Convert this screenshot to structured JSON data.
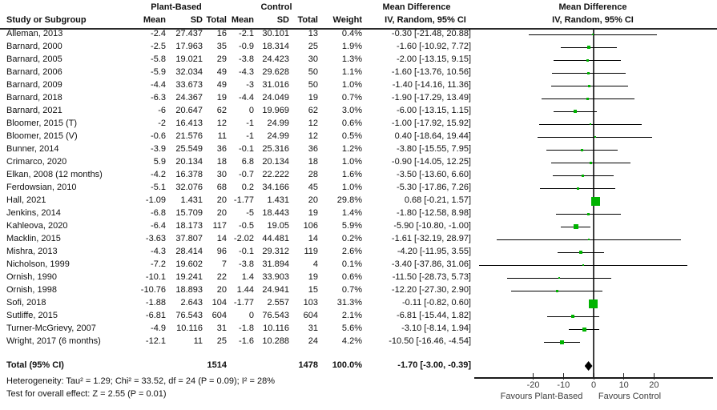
{
  "header": {
    "col_study": "Study or Subgroup",
    "group1": "Plant-Based",
    "group2": "Control",
    "col_mean1": "Mean",
    "col_sd1": "SD",
    "col_total1": "Total",
    "col_mean2": "Mean",
    "col_sd2": "SD",
    "col_total2": "Total",
    "col_weight": "Weight",
    "md_title": "Mean Difference",
    "md_subtitle": "IV, Random, 95% CI",
    "plot_title": "Mean Difference",
    "plot_subtitle": "IV, Random, 95% CI"
  },
  "chart_data": {
    "type": "forest",
    "effect_measure": "Mean Difference, IV, Random, 95% CI",
    "x_axis": {
      "ticks": [
        -20,
        -10,
        0,
        10,
        20
      ],
      "tick_labels": [
        "-20",
        "-10",
        "0",
        "10",
        "20"
      ],
      "range": [
        -39.5,
        39.5
      ],
      "favours_left": "Favours Plant-Based",
      "favours_right": "Favours Control"
    },
    "studies": [
      {
        "name": "Alleman, 2013",
        "mean1": "-2.4",
        "sd1": "27.437",
        "total1": "16",
        "mean2": "-2.1",
        "sd2": "30.101",
        "total2": "13",
        "weight": "0.4%",
        "w": 0.4,
        "md_label": "-0.30 [-21.48, 20.88]",
        "est": -0.3,
        "lo": -21.48,
        "hi": 20.88
      },
      {
        "name": "Barnard, 2000",
        "mean1": "-2.5",
        "sd1": "17.963",
        "total1": "35",
        "mean2": "-0.9",
        "sd2": "18.314",
        "total2": "25",
        "weight": "1.9%",
        "w": 1.9,
        "md_label": "-1.60 [-10.92, 7.72]",
        "est": -1.6,
        "lo": -10.92,
        "hi": 7.72
      },
      {
        "name": "Barnard, 2005",
        "mean1": "-5.8",
        "sd1": "19.021",
        "total1": "29",
        "mean2": "-3.8",
        "sd2": "24.423",
        "total2": "30",
        "weight": "1.3%",
        "w": 1.3,
        "md_label": "-2.00 [-13.15, 9.15]",
        "est": -2.0,
        "lo": -13.15,
        "hi": 9.15
      },
      {
        "name": "Barnard, 2006",
        "mean1": "-5.9",
        "sd1": "32.034",
        "total1": "49",
        "mean2": "-4.3",
        "sd2": "29.628",
        "total2": "50",
        "weight": "1.1%",
        "w": 1.1,
        "md_label": "-1.60 [-13.76, 10.56]",
        "est": -1.6,
        "lo": -13.76,
        "hi": 10.56
      },
      {
        "name": "Barnard, 2009",
        "mean1": "-4.4",
        "sd1": "33.673",
        "total1": "49",
        "mean2": "-3",
        "sd2": "31.016",
        "total2": "50",
        "weight": "1.0%",
        "w": 1.0,
        "md_label": "-1.40 [-14.16, 11.36]",
        "est": -1.4,
        "lo": -14.16,
        "hi": 11.36
      },
      {
        "name": "Barnard, 2018",
        "mean1": "-6.3",
        "sd1": "24.367",
        "total1": "19",
        "mean2": "-4.4",
        "sd2": "24.049",
        "total2": "19",
        "weight": "0.7%",
        "w": 0.7,
        "md_label": "-1.90 [-17.29, 13.49]",
        "est": -1.9,
        "lo": -17.29,
        "hi": 13.49
      },
      {
        "name": "Barnard, 2021",
        "mean1": "-6",
        "sd1": "20.647",
        "total1": "62",
        "mean2": "0",
        "sd2": "19.969",
        "total2": "62",
        "weight": "3.0%",
        "w": 3.0,
        "md_label": "-6.00 [-13.15, 1.15]",
        "est": -6.0,
        "lo": -13.15,
        "hi": 1.15
      },
      {
        "name": "Bloomer, 2015 (T)",
        "mean1": "-2",
        "sd1": "16.413",
        "total1": "12",
        "mean2": "-1",
        "sd2": "24.99",
        "total2": "12",
        "weight": "0.6%",
        "w": 0.6,
        "md_label": "-1.00 [-17.92, 15.92]",
        "est": -1.0,
        "lo": -17.92,
        "hi": 15.92
      },
      {
        "name": "Bloomer, 2015 (V)",
        "mean1": "-0.6",
        "sd1": "21.576",
        "total1": "11",
        "mean2": "-1",
        "sd2": "24.99",
        "total2": "12",
        "weight": "0.5%",
        "w": 0.5,
        "md_label": "0.40 [-18.64, 19.44]",
        "est": 0.4,
        "lo": -18.64,
        "hi": 19.44
      },
      {
        "name": "Bunner, 2014",
        "mean1": "-3.9",
        "sd1": "25.549",
        "total1": "36",
        "mean2": "-0.1",
        "sd2": "25.316",
        "total2": "36",
        "weight": "1.2%",
        "w": 1.2,
        "md_label": "-3.80 [-15.55, 7.95]",
        "est": -3.8,
        "lo": -15.55,
        "hi": 7.95
      },
      {
        "name": "Crimarco, 2020",
        "mean1": "5.9",
        "sd1": "20.134",
        "total1": "18",
        "mean2": "6.8",
        "sd2": "20.134",
        "total2": "18",
        "weight": "1.0%",
        "w": 1.0,
        "md_label": "-0.90 [-14.05, 12.25]",
        "est": -0.9,
        "lo": -14.05,
        "hi": 12.25
      },
      {
        "name": "Elkan, 2008 (12 months)",
        "mean1": "-4.2",
        "sd1": "16.378",
        "total1": "30",
        "mean2": "-0.7",
        "sd2": "22.222",
        "total2": "28",
        "weight": "1.6%",
        "w": 1.6,
        "md_label": "-3.50 [-13.60, 6.60]",
        "est": -3.5,
        "lo": -13.6,
        "hi": 6.6
      },
      {
        "name": "Ferdowsian, 2010",
        "mean1": "-5.1",
        "sd1": "32.076",
        "total1": "68",
        "mean2": "0.2",
        "sd2": "34.166",
        "total2": "45",
        "weight": "1.0%",
        "w": 1.0,
        "md_label": "-5.30 [-17.86, 7.26]",
        "est": -5.3,
        "lo": -17.86,
        "hi": 7.26
      },
      {
        "name": "Hall, 2021",
        "mean1": "-1.09",
        "sd1": "1.431",
        "total1": "20",
        "mean2": "-1.77",
        "sd2": "1.431",
        "total2": "20",
        "weight": "29.8%",
        "w": 29.8,
        "md_label": "0.68 [-0.21, 1.57]",
        "est": 0.68,
        "lo": -0.21,
        "hi": 1.57
      },
      {
        "name": "Jenkins, 2014",
        "mean1": "-6.8",
        "sd1": "15.709",
        "total1": "20",
        "mean2": "-5",
        "sd2": "18.443",
        "total2": "19",
        "weight": "1.4%",
        "w": 1.4,
        "md_label": "-1.80 [-12.58, 8.98]",
        "est": -1.8,
        "lo": -12.58,
        "hi": 8.98
      },
      {
        "name": "Kahleova, 2020",
        "mean1": "-6.4",
        "sd1": "18.173",
        "total1": "117",
        "mean2": "-0.5",
        "sd2": "19.05",
        "total2": "106",
        "weight": "5.9%",
        "w": 5.9,
        "md_label": "-5.90 [-10.80, -1.00]",
        "est": -5.9,
        "lo": -10.8,
        "hi": -1.0
      },
      {
        "name": "Macklin, 2015",
        "mean1": "-3.63",
        "sd1": "37.807",
        "total1": "14",
        "mean2": "-2.02",
        "sd2": "44.481",
        "total2": "14",
        "weight": "0.2%",
        "w": 0.2,
        "md_label": "-1.61 [-32.19, 28.97]",
        "est": -1.61,
        "lo": -32.19,
        "hi": 28.97
      },
      {
        "name": "Mishra, 2013",
        "mean1": "-4.3",
        "sd1": "28.414",
        "total1": "96",
        "mean2": "-0.1",
        "sd2": "29.312",
        "total2": "119",
        "weight": "2.6%",
        "w": 2.6,
        "md_label": "-4.20 [-11.95, 3.55]",
        "est": -4.2,
        "lo": -11.95,
        "hi": 3.55
      },
      {
        "name": "Nicholson, 1999",
        "mean1": "-7.2",
        "sd1": "19.602",
        "total1": "7",
        "mean2": "-3.8",
        "sd2": "31.894",
        "total2": "4",
        "weight": "0.1%",
        "w": 0.1,
        "md_label": "-3.40 [-37.86, 31.06]",
        "est": -3.4,
        "lo": -37.86,
        "hi": 31.06
      },
      {
        "name": "Ornish, 1990",
        "mean1": "-10.1",
        "sd1": "19.241",
        "total1": "22",
        "mean2": "1.4",
        "sd2": "33.903",
        "total2": "19",
        "weight": "0.6%",
        "w": 0.6,
        "md_label": "-11.50 [-28.73, 5.73]",
        "est": -11.5,
        "lo": -28.73,
        "hi": 5.73
      },
      {
        "name": "Ornish, 1998",
        "mean1": "-10.76",
        "sd1": "18.893",
        "total1": "20",
        "mean2": "1.44",
        "sd2": "24.941",
        "total2": "15",
        "weight": "0.7%",
        "w": 0.7,
        "md_label": "-12.20 [-27.30, 2.90]",
        "est": -12.2,
        "lo": -27.3,
        "hi": 2.9
      },
      {
        "name": "Sofi, 2018",
        "mean1": "-1.88",
        "sd1": "2.643",
        "total1": "104",
        "mean2": "-1.77",
        "sd2": "2.557",
        "total2": "103",
        "weight": "31.3%",
        "w": 31.3,
        "md_label": "-0.11 [-0.82, 0.60]",
        "est": -0.11,
        "lo": -0.82,
        "hi": 0.6
      },
      {
        "name": "Sutliffe, 2015",
        "mean1": "-6.81",
        "sd1": "76.543",
        "total1": "604",
        "mean2": "0",
        "sd2": "76.543",
        "total2": "604",
        "weight": "2.1%",
        "w": 2.1,
        "md_label": "-6.81 [-15.44, 1.82]",
        "est": -6.81,
        "lo": -15.44,
        "hi": 1.82
      },
      {
        "name": "Turner-McGrievy, 2007",
        "mean1": "-4.9",
        "sd1": "10.116",
        "total1": "31",
        "mean2": "-1.8",
        "sd2": "10.116",
        "total2": "31",
        "weight": "5.6%",
        "w": 5.6,
        "md_label": "-3.10 [-8.14, 1.94]",
        "est": -3.1,
        "lo": -8.14,
        "hi": 1.94
      },
      {
        "name": "Wright, 2017 (6 months)",
        "mean1": "-12.1",
        "sd1": "11",
        "total1": "25",
        "mean2": "-1.6",
        "sd2": "10.288",
        "total2": "24",
        "weight": "4.2%",
        "w": 4.2,
        "md_label": "-10.50 [-16.46, -4.54]",
        "est": -10.5,
        "lo": -16.46,
        "hi": -4.54
      }
    ],
    "total": {
      "label": "Total (95% CI)",
      "total1": "1514",
      "total2": "1478",
      "weight": "100.0%",
      "md_label": "-1.70 [-3.00, -0.39]",
      "est": -1.7,
      "lo": -3.0,
      "hi": -0.39
    },
    "footer": {
      "heterogeneity": "Heterogeneity: Tau² = 1.29; Chi² = 33.52, df = 24 (P = 0.09); I² = 28%",
      "overall_effect": "Test for overall effect: Z = 2.55 (P = 0.01)"
    }
  },
  "colors": {
    "marker_green": "#00b300",
    "ci_black": "#000000",
    "diamond_black": "#000000",
    "axis_gray": "#3c3c3c"
  }
}
